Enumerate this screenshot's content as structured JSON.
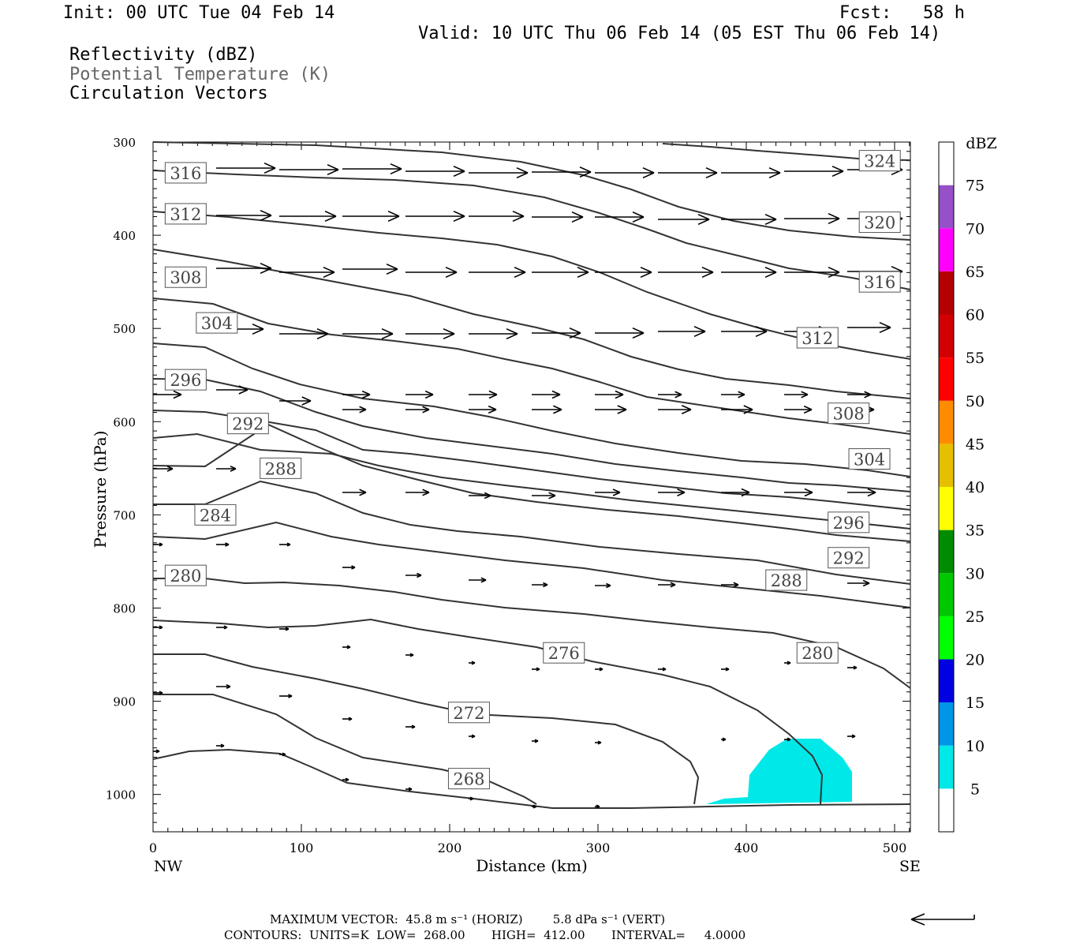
{
  "header": {
    "init": "Init: 00 UTC Tue 04 Feb 14",
    "fcst": "Fcst:   58 h",
    "valid": "Valid: 10 UTC Thu 06 Feb 14 (05 EST Thu 06 Feb 14)"
  },
  "fields": {
    "reflectivity": "Reflectivity (dBZ)",
    "theta": "Potential Temperature (K)",
    "vectors": "Circulation Vectors"
  },
  "colors": {
    "contour": "#333333",
    "fill5": "#00e8e8",
    "frame": "#000000"
  },
  "footer": {
    "max_vector": "MAXIMUM VECTOR:  45.8 m s⁻¹ (HORIZ)        5.8 dPa s⁻¹ (VERT)",
    "contours": "CONTOURS:  UNITS=K  LOW=  268.00       HIGH=  412.00       INTERVAL=     4.0000"
  },
  "chart_data": {
    "type": "cross-section",
    "title": "",
    "xlabel": "Distance (km)",
    "ylabel": "Pressure (hPa)",
    "xlim": [
      0,
      512
    ],
    "ylim": [
      1040,
      300
    ],
    "x_ticks": [
      "0",
      "100",
      "200",
      "300",
      "400",
      "500"
    ],
    "y_ticks": [
      "300",
      "400",
      "500",
      "600",
      "700",
      "800",
      "900",
      "1000"
    ],
    "x_end_labels": {
      "left": "NW",
      "right": "SE"
    },
    "contour_labels": [
      {
        "label": "268",
        "x": 213,
        "p": 983
      },
      {
        "label": "272",
        "x": 213,
        "p": 912
      },
      {
        "label": "276",
        "x": 277,
        "p": 848
      },
      {
        "label": "280",
        "x": 22,
        "p": 765
      },
      {
        "label": "280",
        "x": 448,
        "p": 848
      },
      {
        "label": "284",
        "x": 42,
        "p": 700
      },
      {
        "label": "288",
        "x": 86,
        "p": 650
      },
      {
        "label": "288",
        "x": 427,
        "p": 770
      },
      {
        "label": "292",
        "x": 64,
        "p": 602
      },
      {
        "label": "292",
        "x": 469,
        "p": 746
      },
      {
        "label": "296",
        "x": 22,
        "p": 555
      },
      {
        "label": "296",
        "x": 469,
        "p": 708
      },
      {
        "label": "304",
        "x": 43,
        "p": 494
      },
      {
        "label": "304",
        "x": 483,
        "p": 640
      },
      {
        "label": "308",
        "x": 22,
        "p": 445
      },
      {
        "label": "308",
        "x": 469,
        "p": 591
      },
      {
        "label": "312",
        "x": 22,
        "p": 377
      },
      {
        "label": "312",
        "x": 448,
        "p": 510
      },
      {
        "label": "316",
        "x": 22,
        "p": 333
      },
      {
        "label": "316",
        "x": 490,
        "p": 450
      },
      {
        "label": "320",
        "x": 490,
        "p": 386
      },
      {
        "label": "324",
        "x": 490,
        "p": 320
      }
    ],
    "colorbar": {
      "title": "dBZ",
      "levels": [
        "5",
        "10",
        "15",
        "20",
        "25",
        "30",
        "35",
        "40",
        "45",
        "50",
        "55",
        "60",
        "65",
        "70",
        "75"
      ],
      "colors": [
        "#ffffff",
        "#00e8e8",
        "#0096e8",
        "#0000e0",
        "#00ff00",
        "#00c800",
        "#008c00",
        "#ffff00",
        "#e6c000",
        "#ff8c00",
        "#ff0000",
        "#d20000",
        "#b40000",
        "#ff00ff",
        "#9650c8",
        "#ffffff"
      ]
    }
  }
}
